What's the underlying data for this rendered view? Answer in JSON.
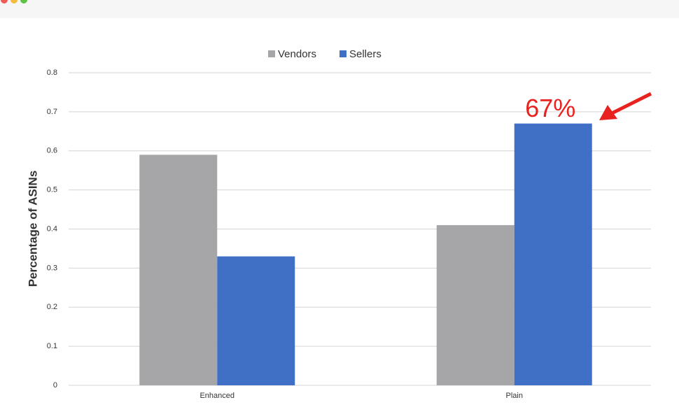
{
  "chart_data": {
    "type": "bar",
    "categories": [
      "Enhanced",
      "Plain"
    ],
    "series": [
      {
        "name": "Vendors",
        "color": "#a6a5a8",
        "values": [
          0.59,
          0.41
        ]
      },
      {
        "name": "Sellers",
        "color": "#4070c6",
        "values": [
          0.33,
          0.67
        ],
        "value_labels": [
          null,
          "67%"
        ]
      }
    ],
    "y_label": "Percentage of ASINs",
    "ylim": [
      0,
      0.8
    ],
    "yticks": [
      0,
      0.1,
      0.2,
      0.3,
      0.4,
      0.5,
      0.6,
      0.7,
      0.8
    ],
    "grid": true,
    "legend": "top"
  }
}
